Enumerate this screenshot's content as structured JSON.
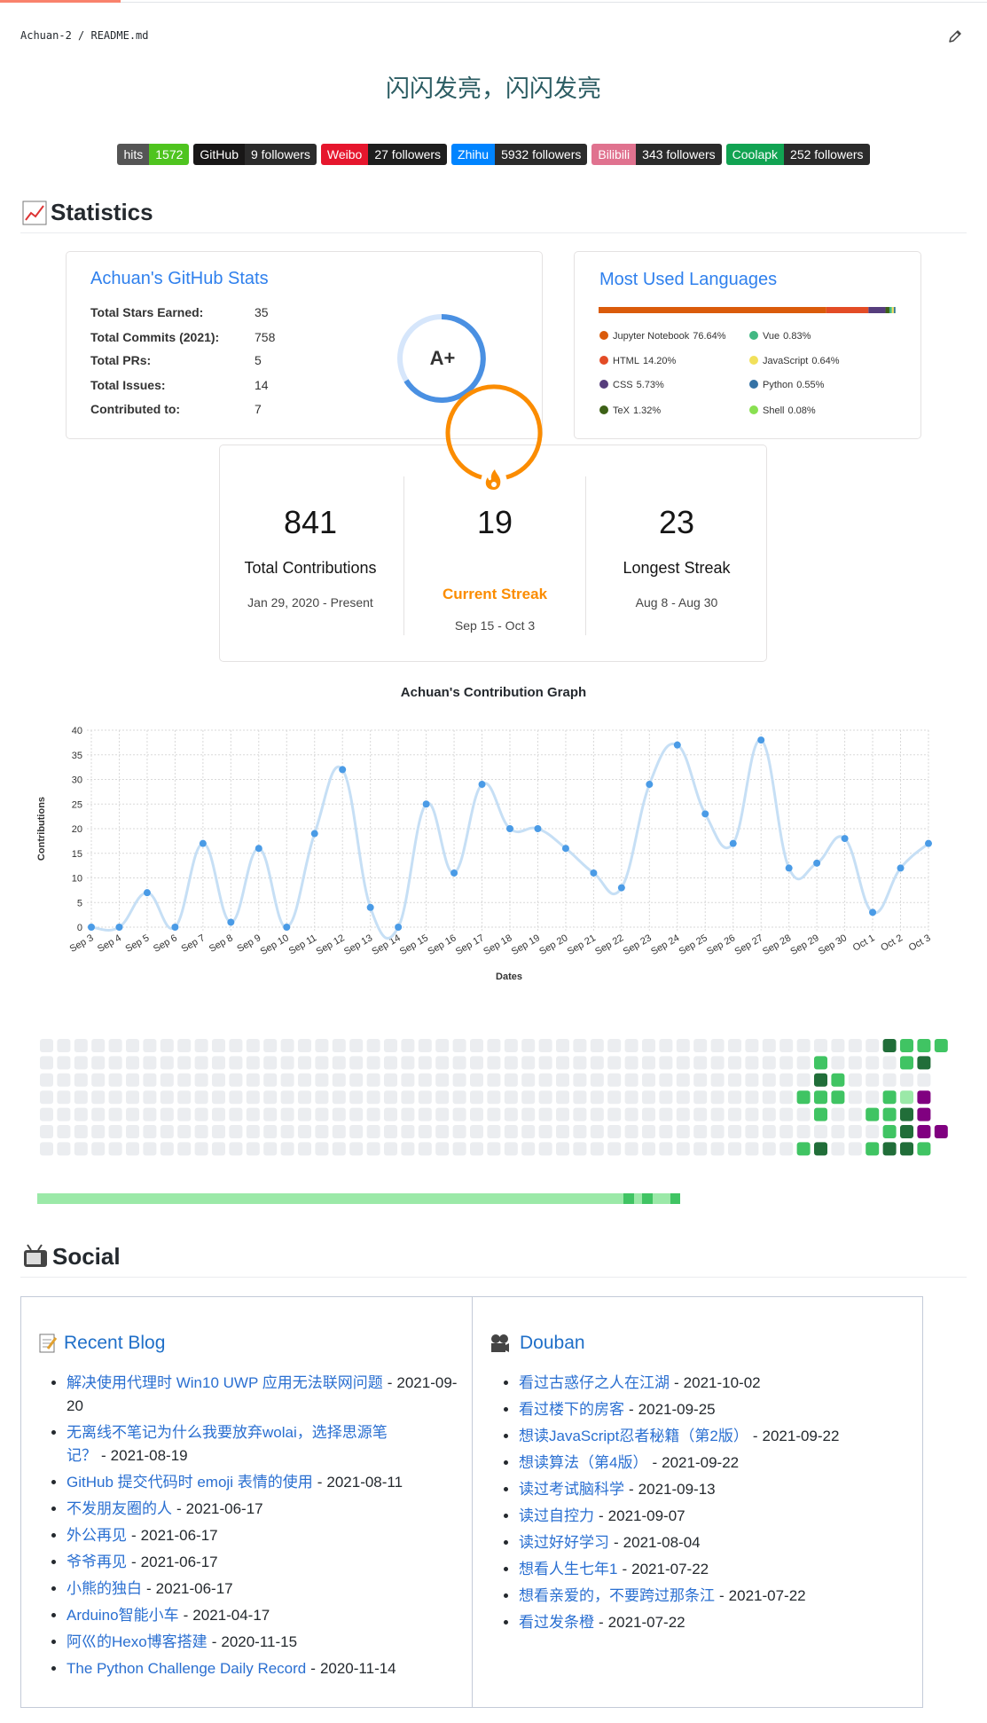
{
  "header": {
    "path": "Achuan-2 / README.md",
    "title": "闪闪发亮，闪闪发亮"
  },
  "badges": [
    {
      "label": "hits",
      "message": "1572",
      "label_color": "#555555",
      "color": "#4fc41f"
    },
    {
      "label": "GitHub",
      "message": "9 followers",
      "label_color": "#181717",
      "color": "#2b2b2b"
    },
    {
      "label": "Weibo",
      "message": "27 followers",
      "label_color": "#e6162d",
      "color": "#1e1e1e"
    },
    {
      "label": "Zhihu",
      "message": "5932 followers",
      "label_color": "#0084ff",
      "color": "#2b2b2b"
    },
    {
      "label": "Bilibili",
      "message": "343 followers",
      "label_color": "#e0728f",
      "color": "#2b2b2b"
    },
    {
      "label": "Coolapk",
      "message": "252 followers",
      "label_color": "#11a352",
      "color": "#2b2b2b"
    }
  ],
  "statistics": {
    "heading": "Statistics",
    "github_stats": {
      "title": "Achuan's GitHub Stats",
      "rows": [
        {
          "label": "Total Stars Earned:",
          "value": 35
        },
        {
          "label": "Total Commits (2021):",
          "value": 758
        },
        {
          "label": "Total PRs:",
          "value": 5
        },
        {
          "label": "Total Issues:",
          "value": 14
        },
        {
          "label": "Contributed to:",
          "value": 7
        }
      ],
      "grade": "A+"
    },
    "languages": {
      "title": "Most Used Languages",
      "items": [
        {
          "name": "Jupyter Notebook",
          "value": 76.64,
          "label": "76.64%",
          "color": "#da5b0b"
        },
        {
          "name": "HTML",
          "value": 14.2,
          "label": "14.20%",
          "color": "#e34c26"
        },
        {
          "name": "CSS",
          "value": 5.73,
          "label": "5.73%",
          "color": "#563d7c"
        },
        {
          "name": "TeX",
          "value": 1.32,
          "label": "1.32%",
          "color": "#3d6117"
        },
        {
          "name": "Vue",
          "value": 0.83,
          "label": "0.83%",
          "color": "#41b883"
        },
        {
          "name": "JavaScript",
          "value": 0.64,
          "label": "0.64%",
          "color": "#f1e05a"
        },
        {
          "name": "Python",
          "value": 0.55,
          "label": "0.55%",
          "color": "#3572a5"
        },
        {
          "name": "Shell",
          "value": 0.08,
          "label": "0.08%",
          "color": "#89e051"
        }
      ]
    },
    "streak": {
      "total": 841,
      "total_label": "Total Contributions",
      "total_range": "Jan 29, 2020 - Present",
      "current": 19,
      "current_label": "Current Streak",
      "current_range": "Sep 15 - Oct 3",
      "longest": 23,
      "longest_label": "Longest Streak",
      "longest_range": "Aug 8 - Aug 30"
    }
  },
  "chart_data": {
    "type": "line",
    "title": "Achuan's Contribution Graph",
    "x_label": "Dates",
    "y_label": "Contributions",
    "categories": [
      "Sep 3",
      "Sep 4",
      "Sep 5",
      "Sep 6",
      "Sep 7",
      "Sep 8",
      "Sep 9",
      "Sep 10",
      "Sep 11",
      "Sep 12",
      "Sep 13",
      "Sep 14",
      "Sep 15",
      "Sep 16",
      "Sep 17",
      "Sep 18",
      "Sep 19",
      "Sep 20",
      "Sep 21",
      "Sep 22",
      "Sep 23",
      "Sep 24",
      "Sep 25",
      "Sep 26",
      "Sep 27",
      "Sep 28",
      "Sep 29",
      "Sep 30",
      "Oct 1",
      "Oct 2",
      "Oct 3"
    ],
    "values": [
      0,
      0,
      7,
      0,
      17,
      1,
      16,
      0,
      19,
      32,
      4,
      0,
      25,
      11,
      29,
      20,
      20,
      16,
      11,
      8,
      29,
      37,
      23,
      17,
      38,
      12,
      13,
      18,
      3,
      12,
      17
    ],
    "color": "#4a9be6",
    "line_color": "#c6dff5",
    "ylim": [
      0,
      40
    ],
    "yticks": [
      0,
      5,
      10,
      15,
      20,
      25,
      30,
      35,
      40
    ],
    "grid": true
  },
  "social": {
    "heading": "Social",
    "separator": "-",
    "blog": {
      "title": "Recent Blog",
      "items": [
        {
          "title": "解决使用代理时 Win10 UWP 应用无法联网问题",
          "date": "2021-09-20"
        },
        {
          "title": "无离线不笔记为什么我要放弃wolai，选择思源笔记？",
          "date": "2021-08-19"
        },
        {
          "title": "GitHub 提交代码时 emoji 表情的使用",
          "date": "2021-08-11"
        },
        {
          "title": "不发朋友圈的人",
          "date": "2021-06-17"
        },
        {
          "title": "外公再见",
          "date": "2021-06-17"
        },
        {
          "title": "爷爷再见",
          "date": "2021-06-17"
        },
        {
          "title": "小熊的独白",
          "date": "2021-06-17"
        },
        {
          "title": "Arduino智能小车",
          "date": "2021-04-17"
        },
        {
          "title": "阿巛的Hexo博客搭建",
          "date": "2020-11-15"
        },
        {
          "title": "The Python Challenge Daily Record",
          "date": "2020-11-14"
        }
      ]
    },
    "douban": {
      "title": "Douban",
      "items": [
        {
          "title": "看过古惑仔之人在江湖",
          "date": "2021-10-02"
        },
        {
          "title": "看过楼下的房客",
          "date": "2021-09-25"
        },
        {
          "title": "想读JavaScript忍者秘籍（第2版）",
          "date": "2021-09-22"
        },
        {
          "title": "想读算法（第4版）",
          "date": "2021-09-22"
        },
        {
          "title": "读过考试脑科学",
          "date": "2021-09-13"
        },
        {
          "title": "读过自控力",
          "date": "2021-09-07"
        },
        {
          "title": "读过好好学习",
          "date": "2021-08-04"
        },
        {
          "title": "想看人生七年1",
          "date": "2021-07-22"
        },
        {
          "title": "想看亲爱的，不要跨过那条江",
          "date": "2021-07-22"
        },
        {
          "title": "看过发条橙",
          "date": "2021-07-22"
        }
      ]
    }
  }
}
